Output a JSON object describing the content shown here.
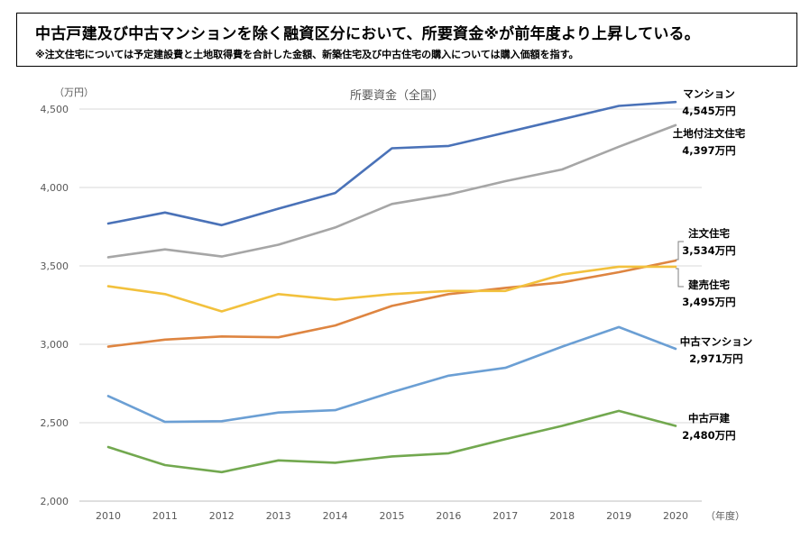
{
  "header": {
    "main": "中古戸建及び中古マンションを除く融資区分において、所要資金※が前年度より上昇している。",
    "note": "※注文住宅については予定建設費と土地取得費を合計した金額、新築住宅及び中古住宅の購入については購入価額を指す。"
  },
  "chart_data": {
    "type": "line",
    "title": "所要資金（全国）",
    "ylabel": "（万円）",
    "xlabel": "（年度）",
    "ylim": [
      2000,
      4500
    ],
    "yticks": [
      "2,000",
      "2,500",
      "3,000",
      "3,500",
      "4,000",
      "4,500"
    ],
    "categories": [
      "2010",
      "2011",
      "2012",
      "2013",
      "2014",
      "2015",
      "2016",
      "2017",
      "2018",
      "2019",
      "2020"
    ],
    "grid": true,
    "series": [
      {
        "key": "mansion",
        "name": "マンション",
        "value_label": "4,545万円",
        "color": "#4a72b8",
        "values": [
          3770,
          3840,
          3760,
          3865,
          3965,
          4250,
          4265,
          4350,
          4435,
          4520,
          4545
        ]
      },
      {
        "key": "tochi",
        "name": "土地付注文住宅",
        "value_label": "4,397万円",
        "color": "#a6a6a6",
        "values": [
          3555,
          3605,
          3560,
          3635,
          3745,
          3895,
          3955,
          4040,
          4115,
          4260,
          4397
        ]
      },
      {
        "key": "chumon",
        "name": "注文住宅",
        "value_label": "3,534万円",
        "color": "#de8541",
        "values": [
          2985,
          3030,
          3050,
          3045,
          3120,
          3245,
          3320,
          3360,
          3395,
          3460,
          3534
        ]
      },
      {
        "key": "tateuri",
        "name": "建売住宅",
        "value_label": "3,495万円",
        "color": "#f2c13d",
        "values": [
          3370,
          3320,
          3210,
          3320,
          3285,
          3320,
          3340,
          3340,
          3445,
          3495,
          3495
        ]
      },
      {
        "key": "chuko_mansion",
        "name": "中古マンション",
        "value_label": "2,971万円",
        "color": "#6b9fd4",
        "values": [
          2670,
          2505,
          2510,
          2565,
          2580,
          2695,
          2800,
          2850,
          2985,
          3110,
          2971
        ]
      },
      {
        "key": "chuko_kodate",
        "name": "中古戸建",
        "value_label": "2,480万円",
        "color": "#72a84f",
        "values": [
          2345,
          2230,
          2185,
          2260,
          2245,
          2285,
          2305,
          2395,
          2480,
          2575,
          2480
        ]
      }
    ]
  }
}
